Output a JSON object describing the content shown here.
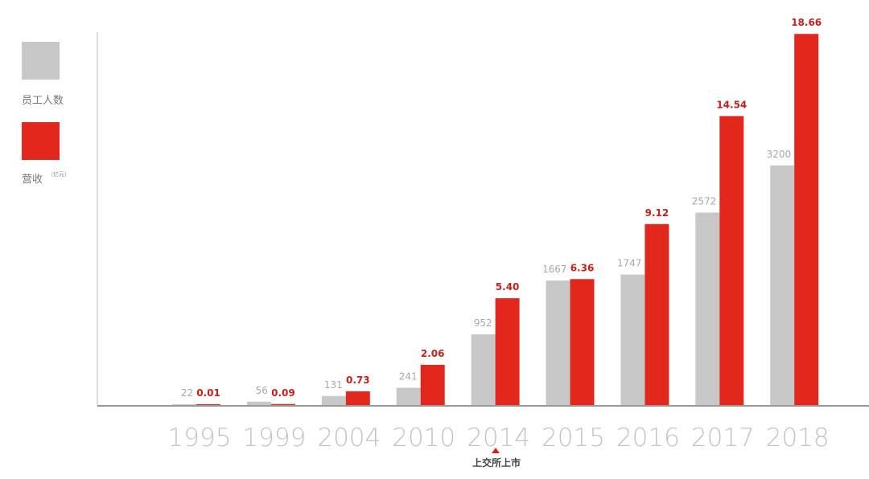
{
  "legend": {
    "employees_label": "员工人数",
    "revenue_label": "营收",
    "revenue_unit": "（亿元）"
  },
  "annotation": {
    "year": "2014",
    "text": "上交所上市"
  },
  "colors": {
    "employees": "#c8c8c8",
    "revenue": "#e2281c",
    "employees_label": "#a8a8a8",
    "revenue_label": "#c8201a",
    "axis_tick": "#c4c4c4"
  },
  "chart_data": {
    "type": "bar",
    "categories": [
      "1995",
      "1999",
      "2004",
      "2010",
      "2014",
      "2015",
      "2016",
      "2017",
      "2018"
    ],
    "series": [
      {
        "name": "员工人数",
        "values": [
          22,
          56,
          131,
          241,
          952,
          1667,
          1747,
          2572,
          3200
        ],
        "labels": [
          "22",
          "56",
          "131",
          "241",
          "952",
          "1667",
          "1747",
          "2572",
          "3200"
        ]
      },
      {
        "name": "营收（亿元）",
        "values": [
          0.01,
          0.09,
          0.73,
          2.06,
          5.4,
          6.36,
          9.12,
          14.54,
          18.66
        ],
        "labels": [
          "0.01",
          "0.09",
          "0.73",
          "2.06",
          "5.40",
          "6.36",
          "9.12",
          "14.54",
          "18.66"
        ]
      }
    ],
    "grid": false,
    "legend_position": "left"
  }
}
